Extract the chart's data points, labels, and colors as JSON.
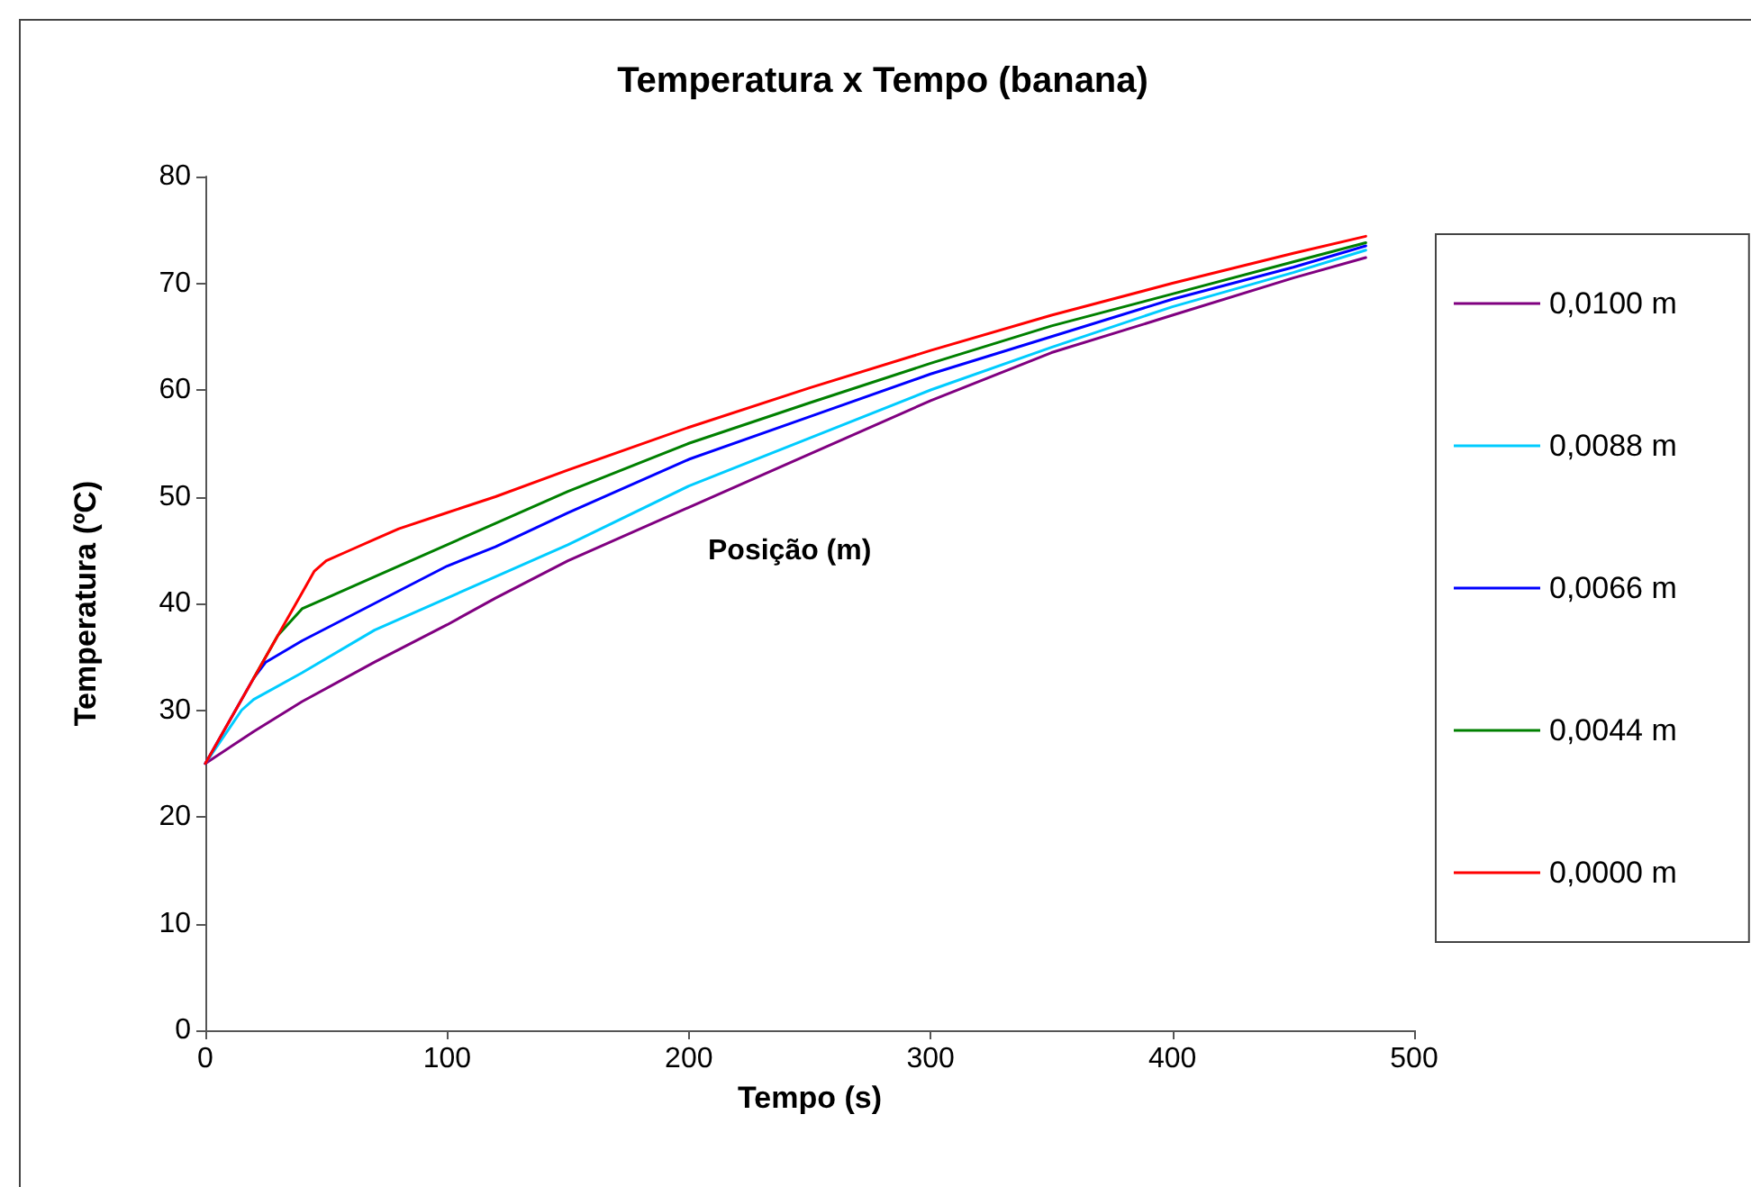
{
  "chart_data": {
    "type": "line",
    "title": "Temperatura x Tempo (banana)",
    "xlabel": "Tempo (s)",
    "ylabel": "Temperatura (ºC)",
    "legend_title": "Posição (m)",
    "xlim": [
      0,
      500
    ],
    "xticks": [
      0,
      100,
      200,
      300,
      400,
      500
    ],
    "ylim": [
      0,
      80
    ],
    "yticks": [
      0,
      10,
      20,
      30,
      40,
      50,
      60,
      70,
      80
    ],
    "grid": false,
    "legend": "right",
    "marker": "none",
    "line_style": "solid",
    "series": [
      {
        "name": "0,0100 m",
        "color": "#800080",
        "x": [
          0,
          20,
          40,
          70,
          100,
          120,
          150,
          200,
          250,
          300,
          350,
          400,
          450,
          480
        ],
        "values": [
          25,
          28,
          30.8,
          34.5,
          38,
          40.5,
          44,
          49,
          54,
          59,
          63.5,
          67,
          70.5,
          72.4
        ]
      },
      {
        "name": "0,0088 m",
        "color": "#00ccff",
        "x": [
          0,
          15,
          20,
          40,
          70,
          100,
          120,
          150,
          200,
          250,
          300,
          350,
          400,
          450,
          480
        ],
        "values": [
          25,
          30,
          31,
          33.5,
          37.5,
          40.5,
          42.5,
          45.5,
          51,
          55.5,
          60,
          64,
          67.8,
          71,
          73.1
        ]
      },
      {
        "name": "0,0066 m",
        "color": "#0000ff",
        "x": [
          0,
          20,
          25,
          40,
          70,
          100,
          120,
          150,
          200,
          250,
          300,
          350,
          400,
          450,
          480
        ],
        "values": [
          25,
          33,
          34.5,
          36.5,
          40,
          43.5,
          45.3,
          48.5,
          53.5,
          57.5,
          61.5,
          65,
          68.5,
          71.5,
          73.5
        ]
      },
      {
        "name": "0,0044 m",
        "color": "#008000",
        "x": [
          20,
          30,
          40,
          50,
          70,
          100,
          120,
          150,
          200,
          250,
          300,
          350,
          400,
          450,
          480
        ],
        "values": [
          33,
          37,
          39.5,
          40.5,
          42.5,
          45.5,
          47.5,
          50.5,
          55,
          58.8,
          62.5,
          66,
          69,
          72,
          73.8
        ]
      },
      {
        "name": "0,0000 m",
        "color": "#ff0000",
        "x": [
          0,
          10,
          20,
          30,
          40,
          45,
          50,
          60,
          70,
          80,
          100,
          120,
          150,
          200,
          250,
          300,
          350,
          400,
          450,
          480
        ],
        "values": [
          25,
          29,
          33,
          37,
          41,
          43,
          44,
          45,
          46,
          47,
          48.5,
          50,
          52.5,
          56.5,
          60.2,
          63.7,
          67,
          70,
          72.8,
          74.4
        ]
      }
    ]
  }
}
